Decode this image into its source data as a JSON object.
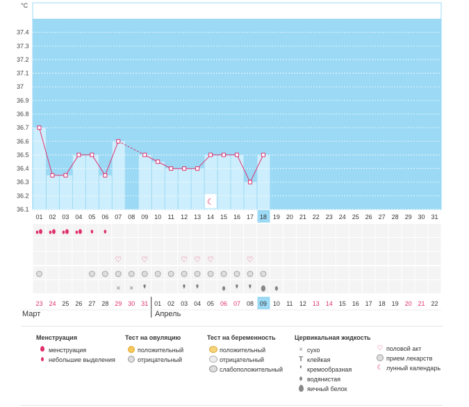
{
  "chart_data": {
    "type": "line",
    "ylabel": "°C",
    "ylim": [
      36.1,
      37.5
    ],
    "yticks": [
      "36.1",
      "36.2",
      "36.3",
      "36.4",
      "36.5",
      "36.6",
      "36.7",
      "36.8",
      "36.9",
      "37",
      "37.1",
      "37.2",
      "37.3",
      "37.4"
    ],
    "cycle_days": [
      "01",
      "02",
      "03",
      "04",
      "05",
      "06",
      "07",
      "08",
      "09",
      "10",
      "11",
      "12",
      "13",
      "14",
      "15",
      "16",
      "17",
      "18",
      "19",
      "20",
      "21",
      "22",
      "23",
      "24",
      "25",
      "26",
      "27",
      "28",
      "29",
      "30",
      "31"
    ],
    "current_day_index": 17,
    "temperatures": [
      36.7,
      36.35,
      36.35,
      36.5,
      36.5,
      36.35,
      36.6,
      null,
      36.5,
      36.45,
      36.4,
      36.4,
      36.4,
      36.5,
      36.5,
      36.5,
      36.3,
      36.5,
      null,
      null,
      null,
      null,
      null,
      null,
      null,
      null,
      null,
      null,
      null,
      null,
      null
    ],
    "calendar_dates": [
      "23",
      "24",
      "25",
      "26",
      "27",
      "28",
      "29",
      "30",
      "31",
      "01",
      "02",
      "03",
      "04",
      "05",
      "06",
      "07",
      "08",
      "09",
      "10",
      "11",
      "12",
      "13",
      "14",
      "15",
      "16",
      "17",
      "18",
      "19",
      "20",
      "21",
      "22"
    ],
    "weekend_flags": [
      1,
      1,
      0,
      0,
      0,
      0,
      1,
      1,
      1,
      0,
      0,
      0,
      0,
      0,
      1,
      1,
      0,
      0,
      0,
      0,
      0,
      1,
      1,
      0,
      0,
      0,
      0,
      0,
      1,
      1,
      0
    ],
    "months": [
      "Март",
      "Апрель"
    ],
    "menstruation": [
      "big",
      "big",
      "big",
      "big",
      "small",
      "small",
      null,
      null,
      null,
      null,
      null,
      null,
      null,
      null,
      null,
      null,
      null,
      null,
      null,
      null,
      null,
      null,
      null,
      null,
      null,
      null,
      null,
      null,
      null,
      null,
      null
    ],
    "intercourse": [
      false,
      false,
      false,
      false,
      false,
      false,
      true,
      false,
      true,
      false,
      false,
      true,
      true,
      true,
      false,
      false,
      true,
      false,
      false,
      false,
      false,
      false,
      false,
      false,
      false,
      false,
      false,
      false,
      false,
      false,
      false
    ],
    "medication": [
      true,
      false,
      false,
      false,
      true,
      true,
      true,
      true,
      true,
      true,
      true,
      true,
      true,
      true,
      true,
      true,
      true,
      true,
      false,
      false,
      false,
      false,
      false,
      false,
      false,
      false,
      false,
      false,
      false,
      false,
      false
    ],
    "fluid": [
      null,
      null,
      null,
      null,
      null,
      null,
      "dry",
      "dry",
      "creamy",
      null,
      null,
      "creamy",
      "creamy",
      null,
      "watery",
      "creamy",
      "creamy",
      "eggwhite",
      "watery",
      null,
      null,
      null,
      null,
      null,
      null,
      null,
      null,
      null,
      null,
      null,
      null
    ],
    "lunar_day_index": 13,
    "colors": {
      "plot": "#9bd9f5",
      "bar": "#cdeefc",
      "line": "#e0306e",
      "current": "#9bd9f5",
      "weekend": "#e0306e"
    }
  },
  "legend": {
    "menstruation": {
      "title": "Менструация",
      "items": [
        "менструация",
        "небольшие выделения"
      ]
    },
    "ovulation": {
      "title": "Тест на овуляцию",
      "items": [
        "положительный",
        "отрицательный"
      ]
    },
    "pregnancy": {
      "title": "Тест на беременность",
      "items": [
        "положительный",
        "отрицательный",
        "слабоположительный"
      ]
    },
    "fluid": {
      "title": "Цервикальная жидкость",
      "items": [
        "сухо",
        "клейкая",
        "кремообразная",
        "водянистая",
        "яичный белок"
      ]
    },
    "other": {
      "items": [
        "половой акт",
        "прием лекарств",
        "лунный календарь"
      ]
    }
  }
}
